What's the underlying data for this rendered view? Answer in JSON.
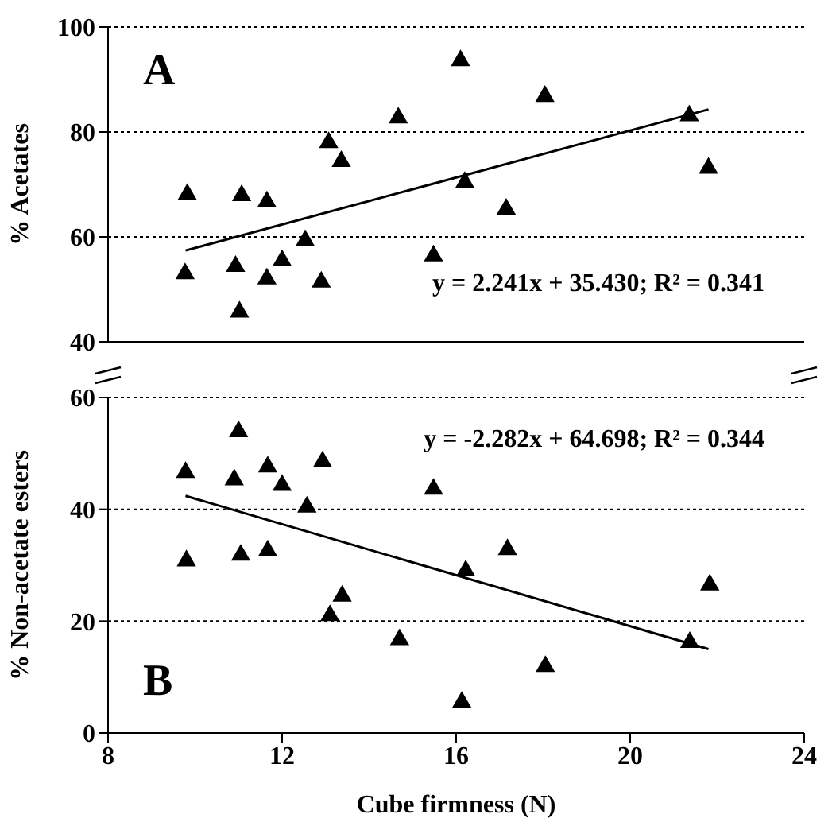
{
  "chart_data": [
    {
      "type": "scatter",
      "ylabel": "% Acetates",
      "marker": "triangle",
      "grid": "y",
      "tick_labels": "y",
      "xlim": [
        8,
        24
      ],
      "xticks": [
        8,
        12,
        16,
        20,
        24
      ],
      "ylim": [
        40,
        100
      ],
      "yticks": [
        40,
        60,
        80,
        100
      ],
      "annotations": [
        "A",
        "y = 2.241x + 35.430;  R² = 0.341"
      ],
      "series": [
        {
          "color": "#000000",
          "x": [
            9.82,
            9.77,
            11.07,
            10.93,
            11.02,
            11.65,
            11.65,
            12.0,
            12.53,
            12.9,
            13.07,
            13.36,
            14.67,
            15.48,
            16.1,
            16.2,
            17.15,
            18.04,
            21.36,
            21.8
          ],
          "values": [
            68.1,
            53.0,
            67.9,
            54.4,
            45.7,
            66.7,
            52.0,
            55.5,
            59.3,
            51.4,
            78.0,
            74.4,
            82.7,
            56.4,
            93.6,
            70.4,
            65.3,
            86.8,
            83.1,
            73.1
          ]
        },
        {
          "type": "line",
          "color": "#000000",
          "line_style": "solid",
          "marker": "none",
          "x": [
            9.78,
            21.8
          ],
          "values": [
            57.4,
            84.3
          ]
        }
      ]
    },
    {
      "type": "scatter",
      "xlabel": "Cube firmness (N)",
      "ylabel": "% Non-acetate esters",
      "marker": "triangle",
      "grid": "y",
      "xlim": [
        8,
        24
      ],
      "xticks": [
        8,
        12,
        16,
        20,
        24
      ],
      "ylim": [
        0,
        60
      ],
      "yticks": [
        0,
        20,
        40,
        60
      ],
      "annotations": [
        "B",
        "y = -2.282x + 64.698;  R² = 0.344"
      ],
      "series": [
        {
          "color": "#000000",
          "x": [
            9.78,
            9.8,
            11.0,
            10.9,
            11.05,
            11.67,
            11.67,
            12.0,
            12.57,
            12.93,
            13.1,
            13.38,
            14.7,
            15.48,
            16.13,
            16.22,
            17.18,
            18.05,
            21.37,
            21.83
          ],
          "values": [
            46.6,
            30.8,
            53.9,
            45.3,
            31.8,
            47.6,
            32.6,
            44.3,
            40.4,
            48.5,
            21.0,
            24.5,
            16.7,
            43.6,
            5.5,
            29.0,
            32.8,
            11.9,
            16.2,
            26.5
          ]
        },
        {
          "type": "line",
          "color": "#000000",
          "line_style": "solid",
          "marker": "none",
          "x": [
            9.78,
            21.8
          ],
          "values": [
            42.4,
            15.0
          ]
        }
      ]
    }
  ]
}
